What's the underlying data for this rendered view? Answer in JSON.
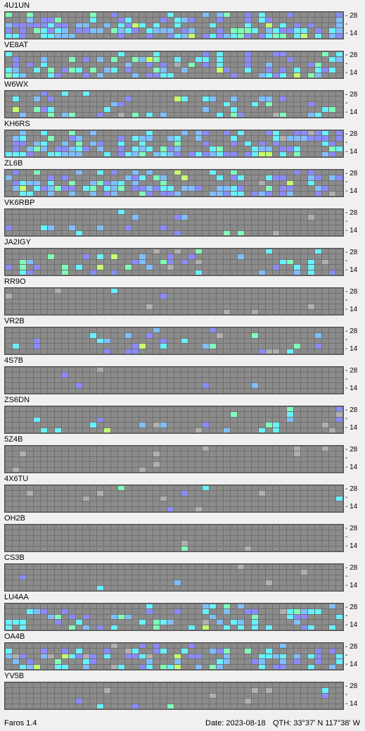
{
  "app": {
    "name": "Faros 1.4",
    "date_label": "Date: 2023-08-18",
    "qth_label": "QTH: 33°37' N  117°38' W"
  },
  "axis": {
    "top_tick": "28",
    "bottom_tick": "14",
    "mid_tick": "-"
  },
  "beacons": [
    {
      "call": "4U1UN"
    },
    {
      "call": "VE8AT"
    },
    {
      "call": "W6WX"
    },
    {
      "call": "KH6RS"
    },
    {
      "call": "ZL6B"
    },
    {
      "call": "VK6RBP"
    },
    {
      "call": "JA2IGY"
    },
    {
      "call": "RR9O"
    },
    {
      "call": "VR2B"
    },
    {
      "call": "4S7B"
    },
    {
      "call": "ZS6DN"
    },
    {
      "call": "5Z4B"
    },
    {
      "call": "4X6TU"
    },
    {
      "call": "OH2B"
    },
    {
      "call": "CS3B"
    },
    {
      "call": "LU4AA"
    },
    {
      "call": "OA4B"
    },
    {
      "call": "YV5B"
    }
  ],
  "colors": {
    "none": "#8c8c8c",
    "level1": "#8b8bff",
    "level2": "#7fbfff",
    "level3": "#66f2ff",
    "level4": "#7fffb8",
    "level5": "#c6ff6e",
    "trace": "#b0b0b0"
  }
}
